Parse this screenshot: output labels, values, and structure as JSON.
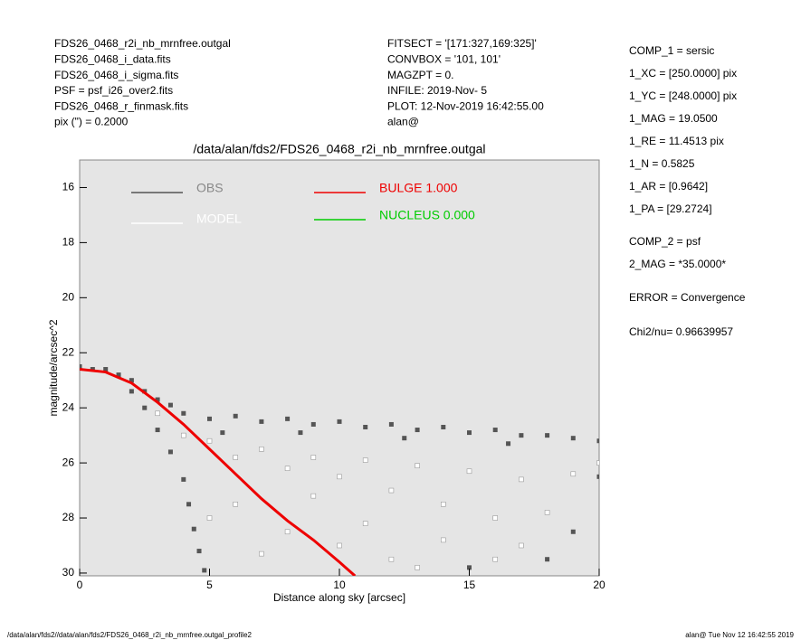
{
  "chart_data": {
    "type": "scatter",
    "title": "/data/alan/fds2/FDS26_0468_r2i_nb_mrnfree.outgal",
    "x_label": "Distance along sky [arcsec]",
    "y_label": "magnitude/arcsec^2",
    "xlim": [
      0,
      20
    ],
    "ylim": [
      30.1,
      15
    ],
    "xticks": [
      0,
      5,
      10,
      15,
      20
    ],
    "yticks": [
      16,
      18,
      20,
      22,
      24,
      26,
      28,
      30
    ],
    "background": "#e5e5e5",
    "series": [
      {
        "name": "OBS",
        "color": "#555555",
        "kind": "points",
        "x": [
          4,
          5,
          6,
          7,
          8,
          9,
          10,
          11,
          12,
          13,
          14,
          15,
          16,
          17,
          18,
          19,
          20,
          5.5,
          8.5,
          12.5,
          16.5,
          0,
          0.5,
          1,
          1.5,
          2,
          2.5,
          3,
          3.5,
          2,
          2.5,
          3,
          3.5,
          4,
          4.2,
          4.4,
          4.6,
          4.8,
          18,
          19,
          20,
          15
        ],
        "y": [
          24.2,
          24.4,
          24.3,
          24.5,
          24.4,
          24.6,
          24.5,
          24.7,
          24.6,
          24.8,
          24.7,
          24.9,
          24.8,
          25.0,
          25.0,
          25.1,
          25.2,
          24.9,
          24.9,
          25.1,
          25.3,
          22.5,
          22.6,
          22.6,
          22.8,
          23.0,
          23.4,
          23.7,
          23.9,
          23.4,
          24.0,
          24.8,
          25.6,
          26.6,
          27.5,
          28.4,
          29.2,
          29.9,
          29.5,
          28.5,
          26.5,
          29.8
        ]
      },
      {
        "name": "MODEL",
        "color": "#ffffff",
        "kind": "points",
        "x": [
          3,
          4,
          5,
          6,
          7,
          8,
          9,
          10,
          11,
          12,
          13,
          14,
          15,
          16,
          17,
          18,
          19,
          20,
          6,
          8,
          10,
          12,
          14,
          16,
          5,
          7,
          9,
          11,
          13,
          17
        ],
        "y": [
          24.2,
          25.0,
          25.2,
          25.8,
          25.5,
          26.2,
          25.8,
          26.5,
          25.9,
          27.0,
          26.1,
          27.5,
          26.3,
          28.0,
          26.6,
          27.8,
          26.4,
          26.0,
          27.5,
          28.5,
          29.0,
          29.5,
          28.8,
          29.5,
          28.0,
          29.3,
          27.2,
          28.2,
          29.8,
          29.0
        ]
      },
      {
        "name": "BULGE  1.000",
        "color": "#ee0000",
        "kind": "line",
        "x": [
          0,
          1,
          2,
          3,
          4,
          5,
          6,
          7,
          8,
          9,
          10,
          10.6
        ],
        "y": [
          22.6,
          22.7,
          23.1,
          23.8,
          24.6,
          25.5,
          26.4,
          27.3,
          28.1,
          28.8,
          29.6,
          30.1
        ]
      },
      {
        "name": "NUCLEUS  0.000",
        "color": "#00cc00",
        "kind": "line",
        "x": [],
        "y": []
      }
    ]
  },
  "info_left": [
    "FDS26_0468_r2i_nb_mrnfree.outgal",
    "FDS26_0468_i_data.fits",
    "FDS26_0468_i_sigma.fits",
    "PSF     = psf_i26_over2.fits",
    "FDS26_0468_r_finmask.fits",
    "pix (\") =  0.2000"
  ],
  "info_mid": [
    "FITSECT = '[171:327,169:325]'",
    "CONVBOX = '101, 101'",
    "MAGZPT  =               0.",
    "INFILE: 2019-Nov- 5",
    "PLOT: 12-Nov-2019 16:42:55.00",
    "alan@"
  ],
  "info_right": [
    "COMP_1  = sersic",
    "1_XC    = [250.0000] pix",
    "1_YC    = [248.0000] pix",
    "1_MAG   = 19.0500",
    "1_RE    = 11.4513 pix",
    "1_N     = 0.5825",
    "1_AR    = [0.9642]",
    "1_PA    = [29.2724]",
    "COMP_2  = psf",
    "2_MAG   = *35.0000*",
    "ERROR   = Convergence",
    "Chi2/nu=      0.96639957"
  ],
  "footer": {
    "left": "/data/alan/fds2//data/alan/fds2/FDS26_0468_r2i_nb_mrnfree.outgal_profile2",
    "right": "alan@  Tue Nov 12 16:42:55 2019"
  }
}
